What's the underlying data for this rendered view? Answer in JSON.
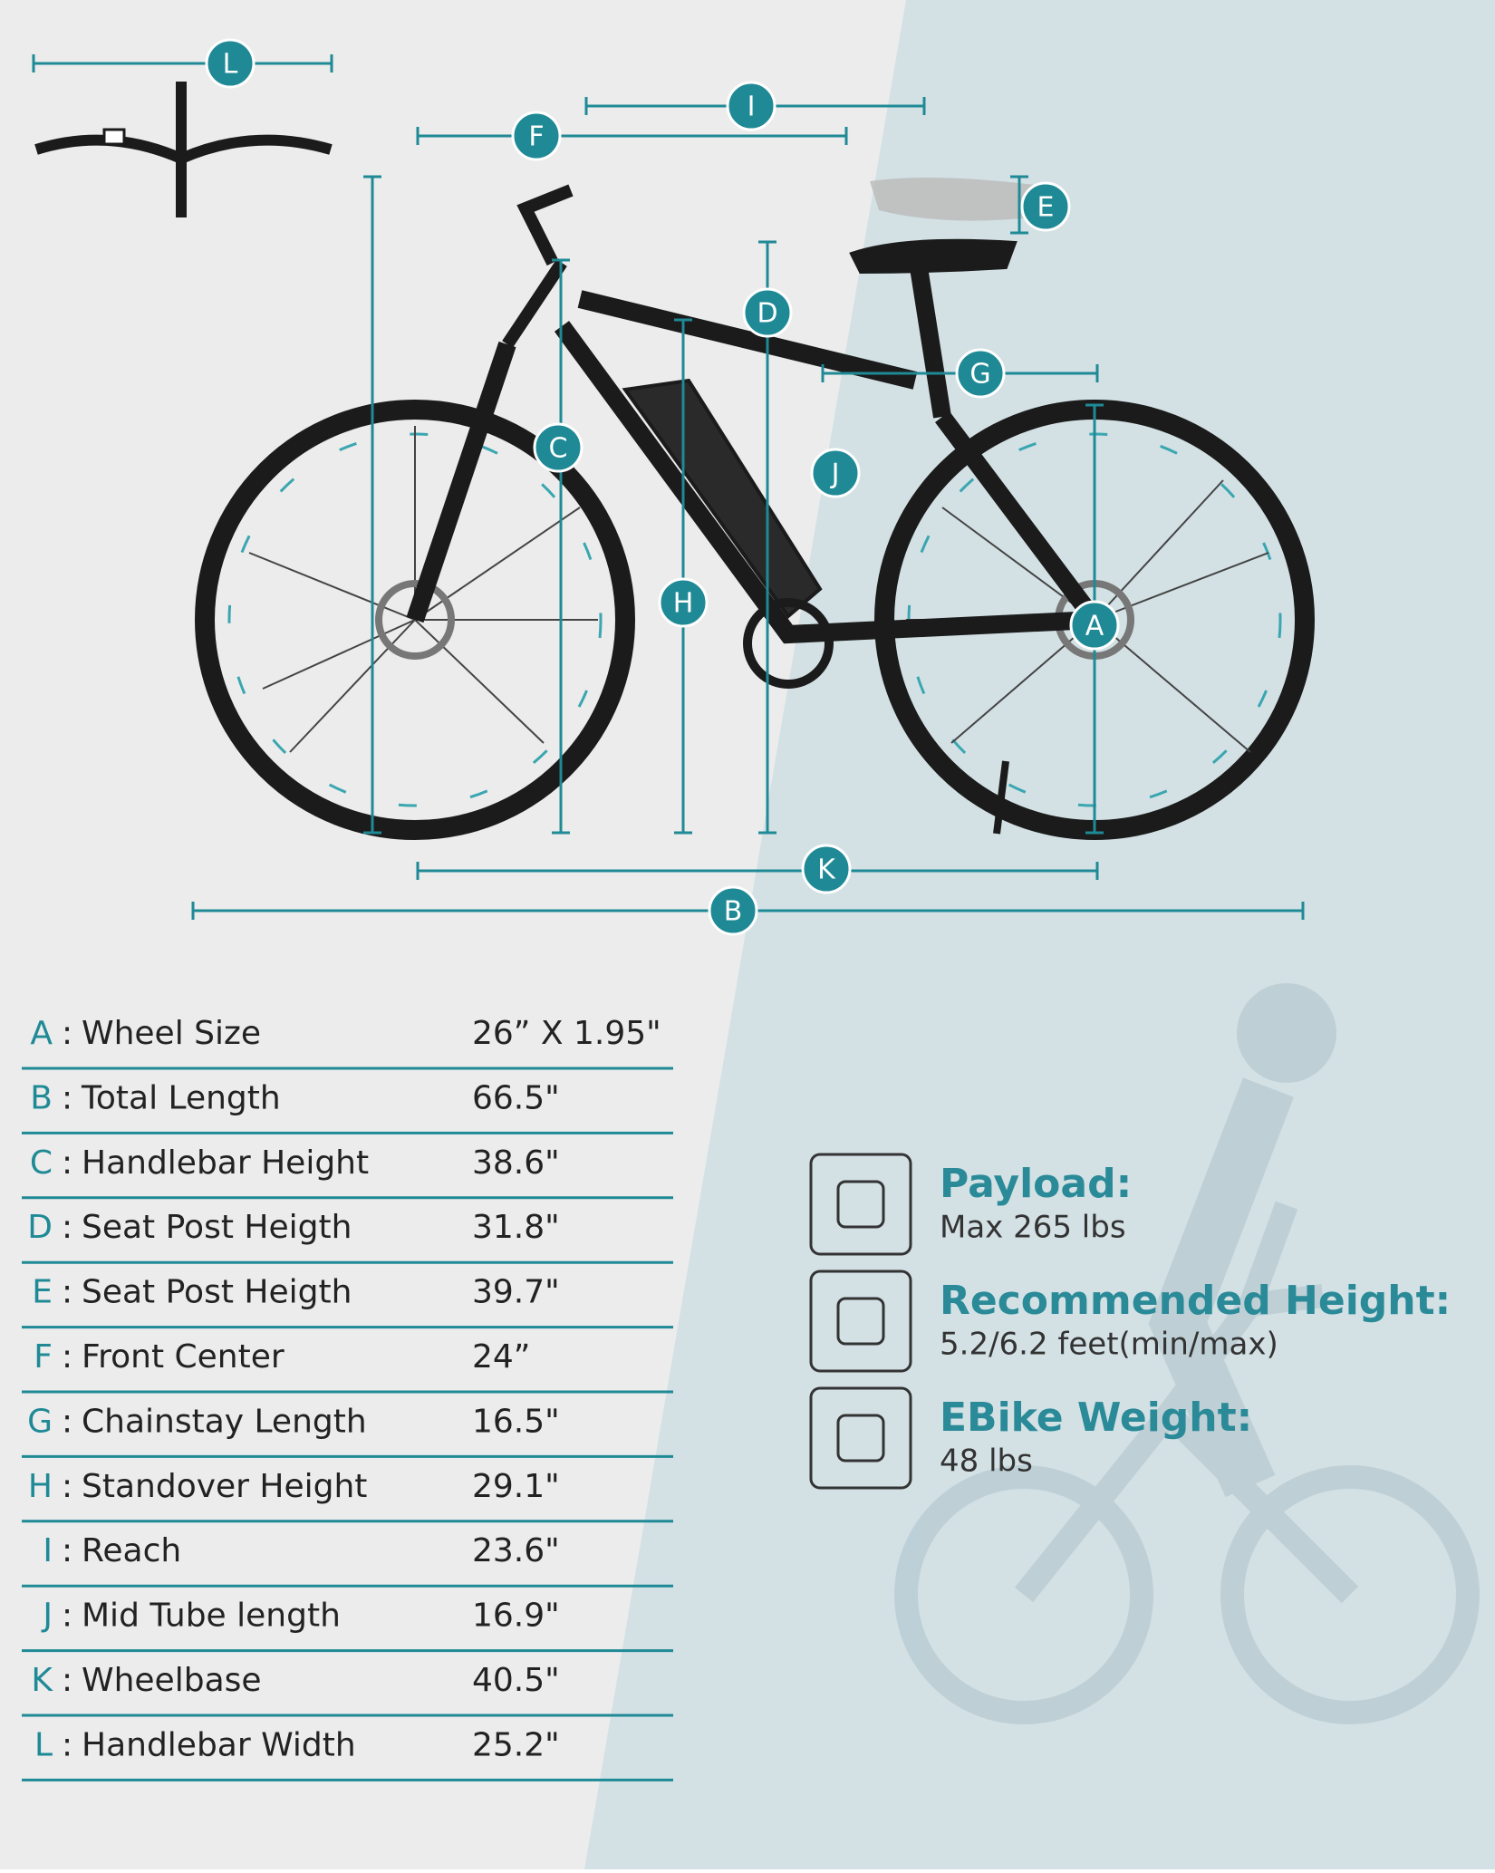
{
  "table": {
    "separator": ":",
    "rows": [
      {
        "letter": "A",
        "label": "Wheel Size",
        "value": "26” X 1.95\""
      },
      {
        "letter": "B",
        "label": "Total Length",
        "value": "66.5\""
      },
      {
        "letter": "C",
        "label": "Handlebar Height",
        "value": "38.6\""
      },
      {
        "letter": "D",
        "label": "Seat Post Heigth",
        "value": "31.8\""
      },
      {
        "letter": "E",
        "label": "Seat Post Heigth",
        "value": "39.7\""
      },
      {
        "letter": "F",
        "label": "Front Center",
        "value": "24”"
      },
      {
        "letter": "G",
        "label": "Chainstay Length",
        "value": "16.5\""
      },
      {
        "letter": "H",
        "label": "Standover Height",
        "value": "29.1\""
      },
      {
        "letter": "I",
        "label": "Reach",
        "value": "23.6\""
      },
      {
        "letter": "J",
        "label": "Mid Tube length",
        "value": "16.9\""
      },
      {
        "letter": "K",
        "label": "Wheelbase",
        "value": "40.5\""
      },
      {
        "letter": "L",
        "label": "Handlebar Width",
        "value": "25.2\""
      }
    ]
  },
  "features": [
    {
      "title": "Payload:",
      "text": "Max 265 lbs"
    },
    {
      "title": "Recommended Height:",
      "text": "5.2/6.2 feet(min/max)"
    },
    {
      "title": "EBike Weight:",
      "text": "48 lbs"
    }
  ]
}
